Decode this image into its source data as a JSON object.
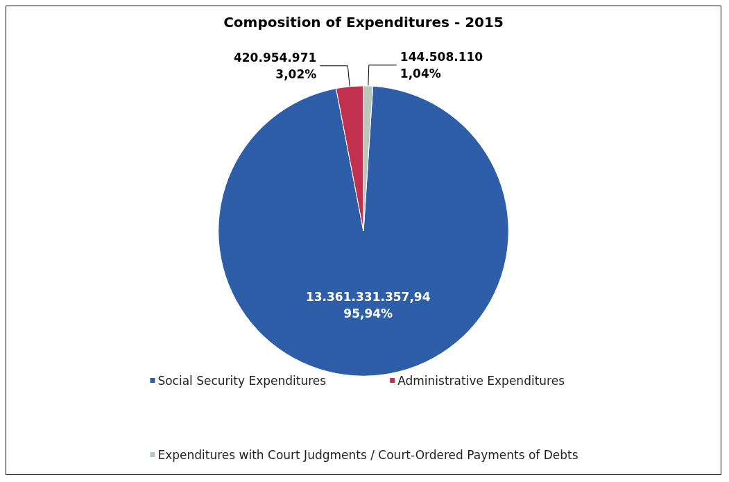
{
  "chart_data": {
    "type": "pie",
    "title": "Composition of Expenditures - 2015",
    "categories": [
      "Social Security Expenditures",
      "Administrative Expenditures",
      "Expenditures with Court Judgments / Court-Ordered Payments of Debts"
    ],
    "values": [
      13361331357.94,
      420954971,
      144508110
    ],
    "value_labels": [
      "13.361.331.357,94\n95,94%",
      "420.954.971\n3,02%",
      "144.508.110\n1,04%"
    ],
    "colors": [
      "#2f5ea8",
      "#c2304f",
      "#b9c7bd"
    ],
    "legend": "bottom"
  }
}
